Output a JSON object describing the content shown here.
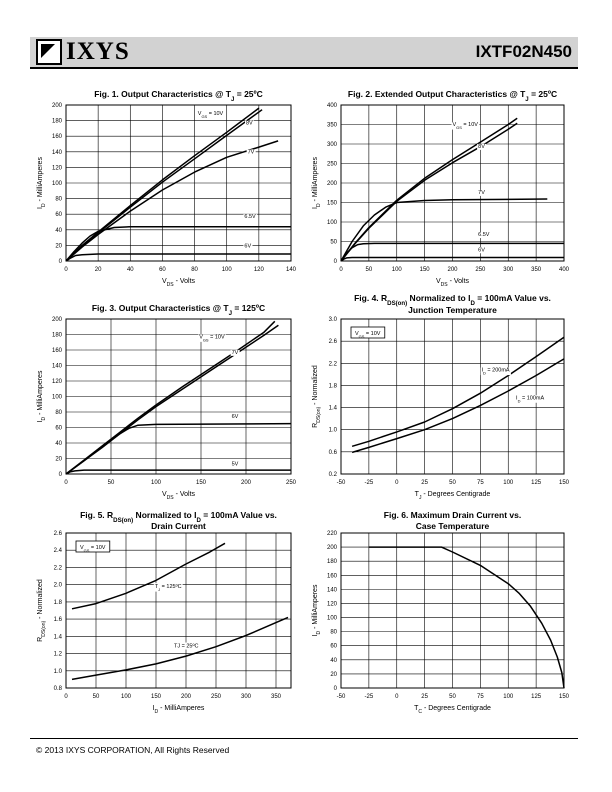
{
  "header": {
    "logo": "IXYS",
    "part_number": "IXTF02N450"
  },
  "footer": {
    "copyright": "© 2013 IXYS CORPORATION, All Rights Reserved"
  },
  "chart_data": [
    {
      "id": "fig1",
      "type": "line",
      "title": "Fig. 1. Output Characteristics @ T{J} = 25ºC",
      "xlabel": "V{DS} - Volts",
      "ylabel": "I{D} - MilliAmperes",
      "xlim": [
        0,
        140
      ],
      "ylim": [
        0,
        200
      ],
      "xticks": [
        0,
        20,
        40,
        60,
        80,
        100,
        120,
        140
      ],
      "yticks": [
        0,
        20,
        40,
        60,
        80,
        100,
        120,
        140,
        160,
        180,
        200
      ],
      "legend": "V{GS} = 10V",
      "series": [
        {
          "name": "10V",
          "x": [
            0,
            10,
            20,
            40,
            60,
            80,
            100,
            120
          ],
          "y": [
            0,
            20,
            37,
            71,
            104,
            135,
            165,
            196
          ]
        },
        {
          "name": "8V",
          "x": [
            0,
            10,
            20,
            40,
            60,
            80,
            100,
            122
          ],
          "y": [
            0,
            19,
            36,
            69,
            101,
            131,
            161,
            194
          ]
        },
        {
          "name": "7V",
          "x": [
            0,
            10,
            20,
            40,
            60,
            80,
            100,
            120,
            132
          ],
          "y": [
            0,
            18,
            34,
            64,
            91,
            114,
            133,
            146,
            154
          ]
        },
        {
          "name": "6.5V",
          "x": [
            0,
            5,
            10,
            15,
            20,
            30,
            40,
            60,
            140
          ],
          "y": [
            0,
            12,
            23,
            32,
            38,
            43,
            44,
            44,
            44
          ]
        },
        {
          "name": "6V",
          "x": [
            0,
            3,
            6,
            10,
            20,
            40,
            140
          ],
          "y": [
            0,
            4,
            7,
            8,
            9,
            9,
            9
          ]
        }
      ],
      "labels": [
        {
          "text": "V{GS} = 10V",
          "x": 82,
          "y": 187
        },
        {
          "text": "8V",
          "x": 112,
          "y": 175
        },
        {
          "text": "7V",
          "x": 113,
          "y": 138
        },
        {
          "text": "6.5V",
          "x": 111,
          "y": 55
        },
        {
          "text": "6V",
          "x": 111,
          "y": 17
        }
      ]
    },
    {
      "id": "fig2",
      "type": "line",
      "title": "Fig. 2. Extended Output Characteristics @ T{J} = 25ºC",
      "xlabel": "V{DS} - Volts",
      "ylabel": "I{D} - MilliAmperes",
      "xlim": [
        0,
        400
      ],
      "ylim": [
        0,
        400
      ],
      "xticks": [
        0,
        50,
        100,
        150,
        200,
        250,
        300,
        350,
        400
      ],
      "yticks": [
        0,
        50,
        100,
        150,
        200,
        250,
        300,
        350,
        400
      ],
      "legend": "V{GS} = 10V",
      "series": [
        {
          "name": "10V",
          "x": [
            0,
            25,
            50,
            100,
            150,
            200,
            250,
            300,
            316
          ],
          "y": [
            0,
            45,
            86,
            156,
            212,
            260,
            305,
            350,
            366
          ]
        },
        {
          "name": "8V",
          "x": [
            0,
            25,
            50,
            100,
            150,
            200,
            250,
            300,
            316
          ],
          "y": [
            0,
            44,
            84,
            153,
            207,
            252,
            293,
            338,
            353
          ]
        },
        {
          "name": "7V",
          "x": [
            0,
            20,
            40,
            60,
            80,
            100,
            150,
            200,
            370
          ],
          "y": [
            0,
            50,
            90,
            118,
            138,
            150,
            155,
            157,
            159
          ]
        },
        {
          "name": "6.5V",
          "x": [
            0,
            10,
            20,
            30,
            40,
            60,
            400
          ],
          "y": [
            0,
            20,
            34,
            42,
            44,
            45,
            45
          ]
        },
        {
          "name": "6V",
          "x": [
            0,
            5,
            10,
            20,
            400
          ],
          "y": [
            0,
            5,
            8,
            9,
            9
          ]
        }
      ],
      "labels": [
        {
          "text": "V{GS} = 10V",
          "x": 200,
          "y": 346
        },
        {
          "text": "8V",
          "x": 246,
          "y": 290
        },
        {
          "text": "7V",
          "x": 246,
          "y": 172
        },
        {
          "text": "6.5V",
          "x": 246,
          "y": 64
        },
        {
          "text": "6V",
          "x": 246,
          "y": 25
        }
      ]
    },
    {
      "id": "fig3",
      "type": "line",
      "title": "Fig. 3. Output Characteristics @ T{J} = 125ºC",
      "xlabel": "V{DS} - Volts",
      "ylabel": "I{D} - MilliAmperes",
      "xlim": [
        0,
        250
      ],
      "ylim": [
        0,
        200
      ],
      "xticks": [
        0,
        50,
        100,
        150,
        200,
        250
      ],
      "yticks": [
        0,
        20,
        40,
        60,
        80,
        100,
        120,
        140,
        160,
        180,
        200
      ],
      "legend": "V{GS} = 10V",
      "series": [
        {
          "name": "10V",
          "x": [
            0,
            20,
            40,
            60,
            80,
            100,
            130,
            160,
            190,
            220,
            232
          ],
          "y": [
            0,
            18,
            36,
            54,
            72,
            89,
            113,
            136,
            159,
            183,
            197
          ]
        },
        {
          "name": "7V",
          "x": [
            0,
            20,
            40,
            60,
            80,
            100,
            130,
            160,
            190,
            220,
            236
          ],
          "y": [
            0,
            17,
            35,
            52,
            70,
            87,
            110,
            133,
            156,
            179,
            192
          ]
        },
        {
          "name": "6V",
          "x": [
            0,
            20,
            40,
            50,
            60,
            70,
            80,
            100,
            250
          ],
          "y": [
            0,
            17,
            34,
            43,
            52,
            59,
            63,
            64,
            65
          ]
        },
        {
          "name": "5V",
          "x": [
            0,
            5,
            10,
            20,
            250
          ],
          "y": [
            0,
            3,
            4,
            5,
            5
          ]
        }
      ],
      "labels": [
        {
          "text": "V{GS} = 10V",
          "x": 148,
          "y": 175
        },
        {
          "text": "7V",
          "x": 184,
          "y": 155
        },
        {
          "text": "6V",
          "x": 184,
          "y": 72
        },
        {
          "text": "5V",
          "x": 184,
          "y": 11
        }
      ]
    },
    {
      "id": "fig4",
      "type": "line",
      "title": "Fig. 4. R{DS(on)} Normalized to I{D} = 100mA Value vs.",
      "title2": "Junction Temperature",
      "xlabel": "T{J} - Degrees Centigrade",
      "ylabel": "R{DS(on)} - Normalized",
      "xlim": [
        -50,
        150
      ],
      "ylim": [
        0.2,
        3.0
      ],
      "xticks": [
        -50,
        -25,
        0,
        25,
        50,
        75,
        100,
        125,
        150
      ],
      "yticks": [
        0.2,
        0.6,
        1.0,
        1.4,
        1.8,
        2.2,
        2.6,
        3.0
      ],
      "yticklabels": [
        "0.2",
        "0.6",
        "1.0",
        "1.4",
        "1.8",
        "2.2",
        "2.6",
        "3.0"
      ],
      "legend": "V{GS} = 10V",
      "series": [
        {
          "name": "I{D} = 200mA",
          "x": [
            -40,
            -25,
            0,
            25,
            50,
            75,
            100,
            125,
            150
          ],
          "y": [
            0.7,
            0.79,
            0.96,
            1.14,
            1.38,
            1.66,
            1.98,
            2.32,
            2.67
          ]
        },
        {
          "name": "I{D} = 100mA",
          "x": [
            -40,
            -25,
            0,
            25,
            50,
            75,
            100,
            125,
            150
          ],
          "y": [
            0.59,
            0.68,
            0.84,
            1.0,
            1.2,
            1.44,
            1.7,
            1.98,
            2.28
          ]
        }
      ],
      "labels": [
        {
          "text": "I{D} = 200mA",
          "x": 76,
          "y": 2.05
        },
        {
          "text": "I{D} = 100mA",
          "x": 107,
          "y": 1.55
        }
      ]
    },
    {
      "id": "fig5",
      "type": "line",
      "title": "Fig. 5. R{DS(on)} Normalized to I{D} = 100mA Value vs.",
      "title2": "Drain Current",
      "xlabel": "I{D} - MilliAmperes",
      "ylabel": "R{DS(on)} - Normalized",
      "xlim": [
        0,
        375
      ],
      "ylim": [
        0.8,
        2.6
      ],
      "xticks": [
        0,
        50,
        100,
        150,
        200,
        250,
        300,
        350
      ],
      "yticks": [
        0.8,
        1.0,
        1.2,
        1.4,
        1.6,
        1.8,
        2.0,
        2.2,
        2.4,
        2.6
      ],
      "yticklabels": [
        "0.8",
        "1.0",
        "1.2",
        "1.4",
        "1.6",
        "1.8",
        "2.0",
        "2.2",
        "2.4",
        "2.6"
      ],
      "legend": "V{GS} = 10V",
      "series": [
        {
          "name": "T{J} = 125ºC",
          "x": [
            10,
            50,
            100,
            150,
            200,
            240,
            265
          ],
          "y": [
            1.72,
            1.78,
            1.9,
            2.05,
            2.24,
            2.38,
            2.48
          ]
        },
        {
          "name": "TJ = 25ºC",
          "x": [
            10,
            50,
            100,
            150,
            200,
            250,
            300,
            350,
            370
          ],
          "y": [
            0.9,
            0.95,
            1.01,
            1.08,
            1.17,
            1.28,
            1.41,
            1.56,
            1.62
          ]
        }
      ],
      "labels": [
        {
          "text": "T{J} = 125ºC",
          "x": 148,
          "y": 1.96
        },
        {
          "text": "TJ = 25ºC",
          "x": 180,
          "y": 1.27
        }
      ]
    },
    {
      "id": "fig6",
      "type": "line",
      "title": "Fig. 6. Maximum Drain Current vs.",
      "title2": "Case Temperature",
      "xlabel": "T{C} - Degrees Centigrade",
      "ylabel": "I{D} - MilliAmperes",
      "xlim": [
        -50,
        150
      ],
      "ylim": [
        0,
        220
      ],
      "xticks": [
        -50,
        -25,
        0,
        25,
        50,
        75,
        100,
        125,
        150
      ],
      "yticks": [
        0,
        20,
        40,
        60,
        80,
        100,
        120,
        140,
        160,
        180,
        200,
        220
      ],
      "legend": "",
      "series": [
        {
          "name": "",
          "x": [
            -25,
            40,
            50,
            75,
            100,
            110,
            120,
            130,
            138,
            144,
            148,
            150
          ],
          "y": [
            200,
            200,
            193,
            174,
            148,
            134,
            116,
            92,
            68,
            44,
            22,
            0
          ]
        }
      ],
      "labels": []
    }
  ]
}
